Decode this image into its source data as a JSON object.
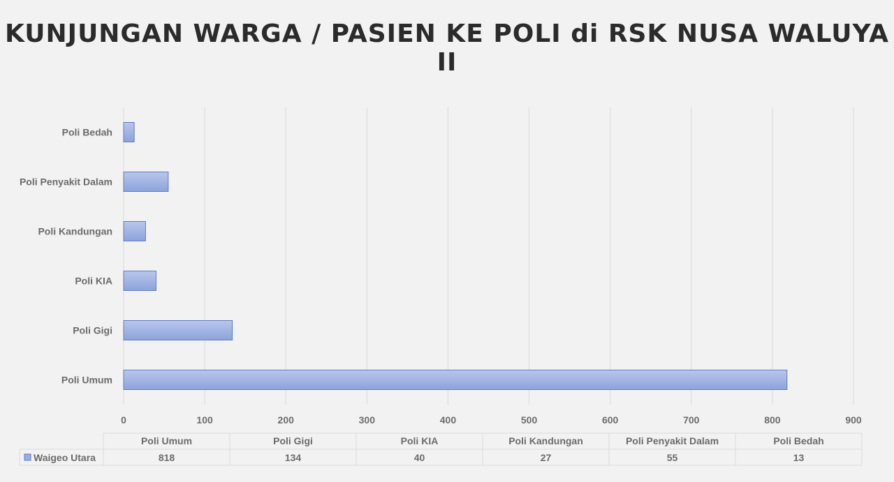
{
  "title": "KUNJUNGAN WARGA / PASIEN KE POLI di RSK NUSA WALUYA II",
  "chart_data": {
    "type": "bar",
    "orientation": "horizontal",
    "categories": [
      "Poli Umum",
      "Poli Gigi",
      "Poli KIA",
      "Poli Kandungan",
      "Poli Penyakit Dalam",
      "Poli Bedah"
    ],
    "series": [
      {
        "name": "Waigeo Utara",
        "values": [
          818,
          134,
          40,
          27,
          55,
          13
        ]
      }
    ],
    "xlim": [
      0,
      900
    ],
    "xticks": [
      0,
      100,
      200,
      300,
      400,
      500,
      600,
      700,
      800,
      900
    ],
    "grid": true,
    "legend": "data-table-below",
    "bar_color": "#9aaee0",
    "bar_edge_color": "#5b7bc6"
  }
}
